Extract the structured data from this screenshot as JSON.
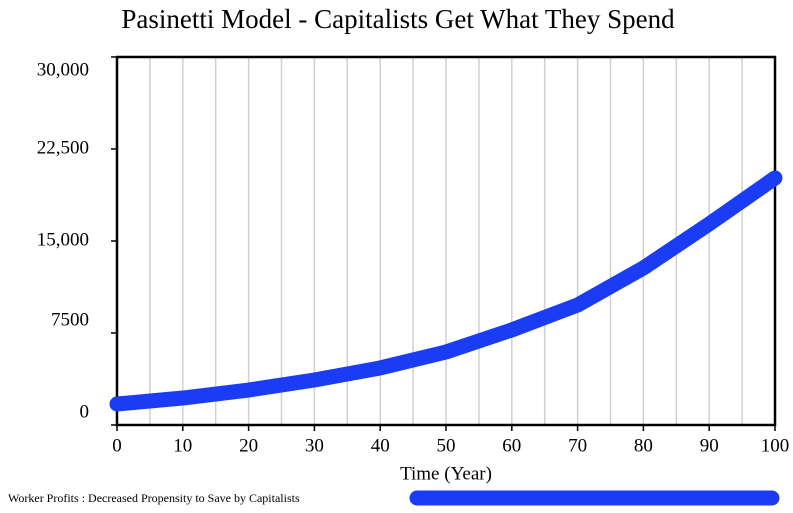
{
  "chart_data": {
    "type": "line",
    "title": "Pasinetti Model - Capitalists Get What They Spend",
    "x_label": "Time (Year)",
    "x": [
      0,
      10,
      20,
      30,
      40,
      50,
      60,
      70,
      80,
      90,
      100
    ],
    "series": [
      {
        "name": "Worker Profits : Decreased Propensity to Save by Capitalists",
        "color": "#1a3cf5",
        "values": [
          1710,
          2200,
          2850,
          3670,
          4650,
          5950,
          7750,
          9780,
          12800,
          16390,
          20140
        ]
      }
    ],
    "xlim": [
      0,
      100
    ],
    "xticks": [
      0,
      10,
      20,
      30,
      40,
      50,
      60,
      70,
      80,
      90,
      100
    ],
    "xgrid": [
      5,
      10,
      15,
      20,
      25,
      30,
      35,
      40,
      45,
      50,
      55,
      60,
      65,
      70,
      75,
      80,
      85,
      90,
      95
    ],
    "ylim": [
      0,
      30000
    ],
    "yticks": [
      0,
      7500,
      {
        "value": 15000,
        "label": "15,000"
      },
      {
        "value": 22500,
        "label": "22,500"
      },
      {
        "value": 30000,
        "label": "30,000"
      }
    ],
    "legend": "bottom"
  }
}
